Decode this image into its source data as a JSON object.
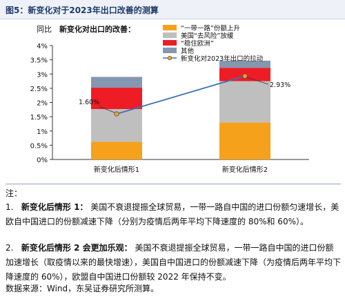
{
  "figure_title": "图5：新变化对于2023年出口改善的测算",
  "chart_data": {
    "type": "bar",
    "subtype": "stacked bar with line overlay",
    "title": "新变化对出口的改善：",
    "ylabel": "同比",
    "ylim": [
      0,
      4
    ],
    "yticks": [
      "0%",
      "0.5%",
      "1%",
      "1.5%",
      "2%",
      "2.5%",
      "3%",
      "3.5%",
      "4%"
    ],
    "categories": [
      "新变化后情形1",
      "新变化后情形2"
    ],
    "series": [
      {
        "name": "“一带一路”份额上升",
        "color": "#f5a11c",
        "values": [
          0.62,
          1.3
        ]
      },
      {
        "name": "美国“去风险”放缓",
        "color": "#bfbfbf",
        "values": [
          1.15,
          1.45
        ]
      },
      {
        "name": "“稳住欧洲”",
        "color": "#ee1c25",
        "values": [
          0.75,
          0.47
        ]
      },
      {
        "name": "其他",
        "color": "#8497b0",
        "values": [
          0.38,
          0.25
        ]
      }
    ],
    "line": {
      "name": "新变化对2023年出口的拉动",
      "color": "#3a70b8",
      "values": [
        1.6,
        2.93
      ],
      "labels": [
        "1.60%",
        "2.93%"
      ]
    },
    "grid": false,
    "legend_position": "top-right"
  },
  "notes": {
    "label": "注：",
    "items": [
      {
        "num": "1.",
        "bold": "新变化后情形 1：",
        "text": "美国不衰退提振全球贸易，一带一路自中国的进口份额匀速增长，美欧自中国进口的份额减速下降（分别为疫情后两年平均下降速度的 80%和 60%）。"
      },
      {
        "num": "2.",
        "bold": "新变化后情形 2 会更加乐观：",
        "text": "美国不衰退提振全球贸易，一带一路自中国的进口份额加速增长（取疫情以来的最快增速），美国自中国进口的份额减速下降（为疫情后两年平均下降速度的 60%），欧盟自中国进口份额较 2022 年保持不变。"
      }
    ],
    "source": "数据来源：Wind，东吴证券研究所测算。"
  }
}
